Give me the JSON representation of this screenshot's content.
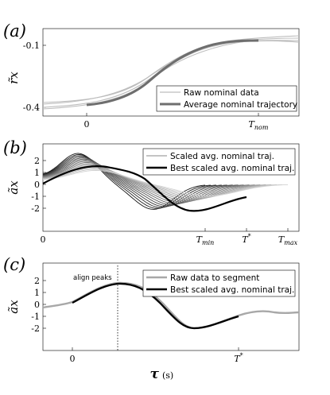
{
  "chart_data": [
    {
      "panel": "a",
      "type": "line",
      "panel_label": "(a)",
      "ylabel": "r̃x",
      "y_ticks": [
        "-0.1",
        "-0.4"
      ],
      "x_ticks": [
        "0",
        "Tnom"
      ],
      "legend": [
        "Raw nominal data",
        "Average nominal trajectory"
      ],
      "colors": {
        "raw": "#bcbcbc",
        "average": "#6e6e6e"
      },
      "ylim": [
        -0.42,
        -0.07
      ]
    },
    {
      "panel": "b",
      "type": "line",
      "panel_label": "(b)",
      "ylabel": "ãx",
      "y_ticks": [
        "2",
        "1",
        "0",
        "-1",
        "-2"
      ],
      "x_ticks": [
        "0",
        "Tmin",
        "T*",
        "Tmax"
      ],
      "legend": [
        "Scaled avg. nominal traj.",
        "Best scaled avg. nominal traj."
      ],
      "colors": {
        "scaled": "gradient black to light gray",
        "best": "#000000"
      },
      "ylim": [
        -2.5,
        2.6
      ]
    },
    {
      "panel": "c",
      "type": "line",
      "panel_label": "(c)",
      "ylabel": "ãx",
      "y_ticks": [
        "2",
        "1",
        "0",
        "-1",
        "-2"
      ],
      "x_ticks": [
        "0",
        "T*"
      ],
      "legend": [
        "Raw data to segment",
        "Best scaled avg. nominal traj."
      ],
      "annotation": "align peaks",
      "xlabel": "τ",
      "xunit": "(s)",
      "colors": {
        "raw": "#a8a8a8",
        "best": "#000000"
      },
      "ylim": [
        -2.5,
        2.6
      ]
    }
  ]
}
